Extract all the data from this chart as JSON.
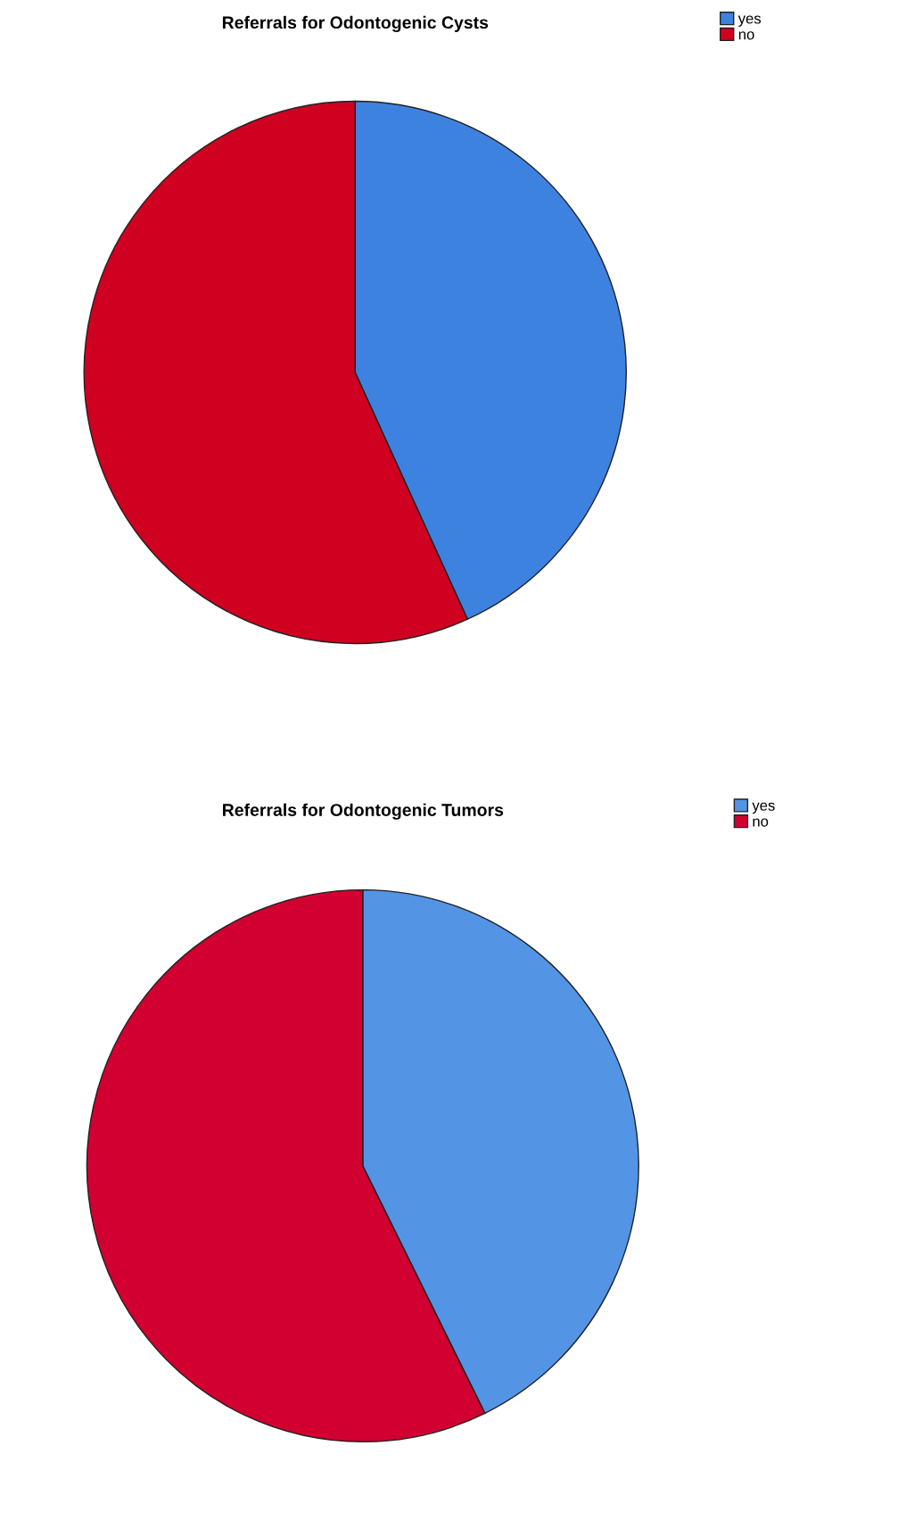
{
  "chart_data": [
    {
      "type": "pie",
      "title": "Referrals for Odontogenic Cysts",
      "categories": [
        "yes",
        "no"
      ],
      "values": [
        43.2,
        56.8
      ],
      "colors": [
        "#3e82e0",
        "#cf0020"
      ],
      "legend": "top right"
    },
    {
      "type": "pie",
      "title": "Referrals for Odontogenic Tumors",
      "categories": [
        "yes",
        "no"
      ],
      "values": [
        42.7,
        57.3
      ],
      "colors": [
        "#5494e4",
        "#d10030"
      ],
      "legend": "top right"
    }
  ]
}
